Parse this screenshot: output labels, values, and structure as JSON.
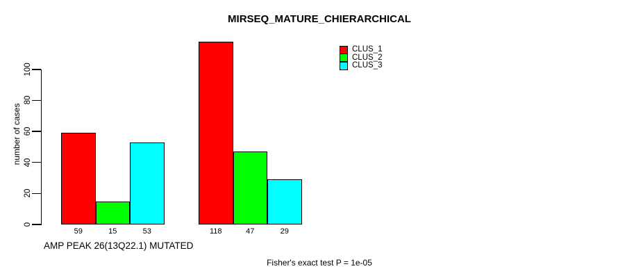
{
  "chart_data": {
    "type": "bar",
    "title": "MIRSEQ_MATURE_CHIERARCHICAL",
    "ylabel": "number of cases",
    "xlabel": "AMP PEAK 26(13Q22.1) MUTATED",
    "annotation": "Fisher's exact test P = 1e-05",
    "ylim": [
      0,
      100
    ],
    "yticks": [
      0,
      20,
      40,
      60,
      80,
      100
    ],
    "grid": false,
    "legend_position": "top-right",
    "bar_labels_shown": true,
    "groups": [
      "AMP PEAK 26(13Q22.1) MUTATED",
      ""
    ],
    "series": [
      {
        "name": "CLUS_1",
        "color": "#ff0000",
        "values": [
          59,
          118
        ]
      },
      {
        "name": "CLUS_2",
        "color": "#00ff00",
        "values": [
          15,
          47
        ]
      },
      {
        "name": "CLUS_3",
        "color": "#00ffff",
        "values": [
          53,
          29
        ]
      }
    ]
  },
  "colors": {
    "axis": "#000000",
    "background": "#ffffff"
  }
}
